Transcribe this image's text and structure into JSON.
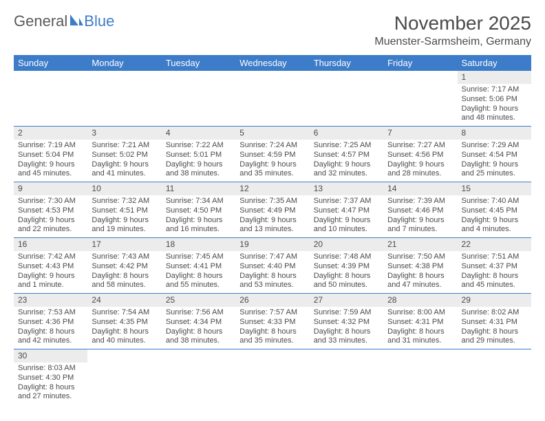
{
  "logo": {
    "text1": "General",
    "text2": "Blue",
    "shape_color": "#3d7cc9"
  },
  "title": "November 2025",
  "location": "Muenster-Sarmsheim, Germany",
  "colors": {
    "header_bg": "#3d7cc9",
    "header_fg": "#ffffff",
    "daynum_bg": "#ececec",
    "text": "#4a4a4a"
  },
  "weekdays": [
    "Sunday",
    "Monday",
    "Tuesday",
    "Wednesday",
    "Thursday",
    "Friday",
    "Saturday"
  ],
  "weeks": [
    [
      null,
      null,
      null,
      null,
      null,
      null,
      {
        "n": "1",
        "sr": "Sunrise: 7:17 AM",
        "ss": "Sunset: 5:06 PM",
        "dl": "Daylight: 9 hours and 48 minutes."
      }
    ],
    [
      {
        "n": "2",
        "sr": "Sunrise: 7:19 AM",
        "ss": "Sunset: 5:04 PM",
        "dl": "Daylight: 9 hours and 45 minutes."
      },
      {
        "n": "3",
        "sr": "Sunrise: 7:21 AM",
        "ss": "Sunset: 5:02 PM",
        "dl": "Daylight: 9 hours and 41 minutes."
      },
      {
        "n": "4",
        "sr": "Sunrise: 7:22 AM",
        "ss": "Sunset: 5:01 PM",
        "dl": "Daylight: 9 hours and 38 minutes."
      },
      {
        "n": "5",
        "sr": "Sunrise: 7:24 AM",
        "ss": "Sunset: 4:59 PM",
        "dl": "Daylight: 9 hours and 35 minutes."
      },
      {
        "n": "6",
        "sr": "Sunrise: 7:25 AM",
        "ss": "Sunset: 4:57 PM",
        "dl": "Daylight: 9 hours and 32 minutes."
      },
      {
        "n": "7",
        "sr": "Sunrise: 7:27 AM",
        "ss": "Sunset: 4:56 PM",
        "dl": "Daylight: 9 hours and 28 minutes."
      },
      {
        "n": "8",
        "sr": "Sunrise: 7:29 AM",
        "ss": "Sunset: 4:54 PM",
        "dl": "Daylight: 9 hours and 25 minutes."
      }
    ],
    [
      {
        "n": "9",
        "sr": "Sunrise: 7:30 AM",
        "ss": "Sunset: 4:53 PM",
        "dl": "Daylight: 9 hours and 22 minutes."
      },
      {
        "n": "10",
        "sr": "Sunrise: 7:32 AM",
        "ss": "Sunset: 4:51 PM",
        "dl": "Daylight: 9 hours and 19 minutes."
      },
      {
        "n": "11",
        "sr": "Sunrise: 7:34 AM",
        "ss": "Sunset: 4:50 PM",
        "dl": "Daylight: 9 hours and 16 minutes."
      },
      {
        "n": "12",
        "sr": "Sunrise: 7:35 AM",
        "ss": "Sunset: 4:49 PM",
        "dl": "Daylight: 9 hours and 13 minutes."
      },
      {
        "n": "13",
        "sr": "Sunrise: 7:37 AM",
        "ss": "Sunset: 4:47 PM",
        "dl": "Daylight: 9 hours and 10 minutes."
      },
      {
        "n": "14",
        "sr": "Sunrise: 7:39 AM",
        "ss": "Sunset: 4:46 PM",
        "dl": "Daylight: 9 hours and 7 minutes."
      },
      {
        "n": "15",
        "sr": "Sunrise: 7:40 AM",
        "ss": "Sunset: 4:45 PM",
        "dl": "Daylight: 9 hours and 4 minutes."
      }
    ],
    [
      {
        "n": "16",
        "sr": "Sunrise: 7:42 AM",
        "ss": "Sunset: 4:43 PM",
        "dl": "Daylight: 9 hours and 1 minute."
      },
      {
        "n": "17",
        "sr": "Sunrise: 7:43 AM",
        "ss": "Sunset: 4:42 PM",
        "dl": "Daylight: 8 hours and 58 minutes."
      },
      {
        "n": "18",
        "sr": "Sunrise: 7:45 AM",
        "ss": "Sunset: 4:41 PM",
        "dl": "Daylight: 8 hours and 55 minutes."
      },
      {
        "n": "19",
        "sr": "Sunrise: 7:47 AM",
        "ss": "Sunset: 4:40 PM",
        "dl": "Daylight: 8 hours and 53 minutes."
      },
      {
        "n": "20",
        "sr": "Sunrise: 7:48 AM",
        "ss": "Sunset: 4:39 PM",
        "dl": "Daylight: 8 hours and 50 minutes."
      },
      {
        "n": "21",
        "sr": "Sunrise: 7:50 AM",
        "ss": "Sunset: 4:38 PM",
        "dl": "Daylight: 8 hours and 47 minutes."
      },
      {
        "n": "22",
        "sr": "Sunrise: 7:51 AM",
        "ss": "Sunset: 4:37 PM",
        "dl": "Daylight: 8 hours and 45 minutes."
      }
    ],
    [
      {
        "n": "23",
        "sr": "Sunrise: 7:53 AM",
        "ss": "Sunset: 4:36 PM",
        "dl": "Daylight: 8 hours and 42 minutes."
      },
      {
        "n": "24",
        "sr": "Sunrise: 7:54 AM",
        "ss": "Sunset: 4:35 PM",
        "dl": "Daylight: 8 hours and 40 minutes."
      },
      {
        "n": "25",
        "sr": "Sunrise: 7:56 AM",
        "ss": "Sunset: 4:34 PM",
        "dl": "Daylight: 8 hours and 38 minutes."
      },
      {
        "n": "26",
        "sr": "Sunrise: 7:57 AM",
        "ss": "Sunset: 4:33 PM",
        "dl": "Daylight: 8 hours and 35 minutes."
      },
      {
        "n": "27",
        "sr": "Sunrise: 7:59 AM",
        "ss": "Sunset: 4:32 PM",
        "dl": "Daylight: 8 hours and 33 minutes."
      },
      {
        "n": "28",
        "sr": "Sunrise: 8:00 AM",
        "ss": "Sunset: 4:31 PM",
        "dl": "Daylight: 8 hours and 31 minutes."
      },
      {
        "n": "29",
        "sr": "Sunrise: 8:02 AM",
        "ss": "Sunset: 4:31 PM",
        "dl": "Daylight: 8 hours and 29 minutes."
      }
    ],
    [
      {
        "n": "30",
        "sr": "Sunrise: 8:03 AM",
        "ss": "Sunset: 4:30 PM",
        "dl": "Daylight: 8 hours and 27 minutes."
      },
      null,
      null,
      null,
      null,
      null,
      null
    ]
  ]
}
